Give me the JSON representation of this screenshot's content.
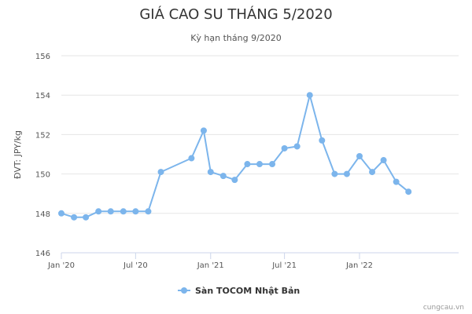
{
  "chart_data": {
    "type": "line",
    "title": "GIÁ CAO SU THÁNG 5/2020",
    "subtitle": "Kỳ hạn tháng 9/2020",
    "ylabel": "ĐVT: JPY/kg",
    "xlabel": "",
    "ylim": [
      146,
      156
    ],
    "yticks": [
      146,
      148,
      150,
      152,
      154,
      156
    ],
    "xlim": [
      "2020-01-01",
      "2022-09-01"
    ],
    "xticks": [
      {
        "date": "2020-01-01",
        "label": "Jan '20"
      },
      {
        "date": "2020-07-01",
        "label": "Jul '20"
      },
      {
        "date": "2021-01-01",
        "label": "Jan '21"
      },
      {
        "date": "2021-07-01",
        "label": "Jul '21"
      },
      {
        "date": "2022-01-01",
        "label": "Jan '22"
      }
    ],
    "grid": true,
    "legend_position": "bottom-center",
    "color": "#7cb5ec",
    "series": [
      {
        "name": "Sàn TOCOM Nhật Bản",
        "points": [
          {
            "x": "2020-01-01",
            "y": 148.0
          },
          {
            "x": "2020-02-01",
            "y": 147.8
          },
          {
            "x": "2020-03-01",
            "y": 147.8
          },
          {
            "x": "2020-04-01",
            "y": 148.1
          },
          {
            "x": "2020-05-01",
            "y": 148.1
          },
          {
            "x": "2020-06-01",
            "y": 148.1
          },
          {
            "x": "2020-07-01",
            "y": 148.1
          },
          {
            "x": "2020-08-01",
            "y": 148.1
          },
          {
            "x": "2020-09-01",
            "y": 150.1
          },
          {
            "x": "2020-11-15",
            "y": 150.8
          },
          {
            "x": "2020-12-15",
            "y": 152.2
          },
          {
            "x": "2021-01-01",
            "y": 150.1
          },
          {
            "x": "2021-02-01",
            "y": 149.9
          },
          {
            "x": "2021-03-01",
            "y": 149.7
          },
          {
            "x": "2021-04-01",
            "y": 150.5
          },
          {
            "x": "2021-05-01",
            "y": 150.5
          },
          {
            "x": "2021-06-01",
            "y": 150.5
          },
          {
            "x": "2021-07-01",
            "y": 151.3
          },
          {
            "x": "2021-08-01",
            "y": 151.4
          },
          {
            "x": "2021-09-01",
            "y": 154.0
          },
          {
            "x": "2021-10-01",
            "y": 151.7
          },
          {
            "x": "2021-11-01",
            "y": 150.0
          },
          {
            "x": "2021-12-01",
            "y": 150.0
          },
          {
            "x": "2022-01-01",
            "y": 150.9
          },
          {
            "x": "2022-02-01",
            "y": 150.1
          },
          {
            "x": "2022-03-01",
            "y": 150.7
          },
          {
            "x": "2022-04-01",
            "y": 149.6
          },
          {
            "x": "2022-05-01",
            "y": 149.1
          }
        ]
      }
    ]
  },
  "credit": "cungcau.vn"
}
